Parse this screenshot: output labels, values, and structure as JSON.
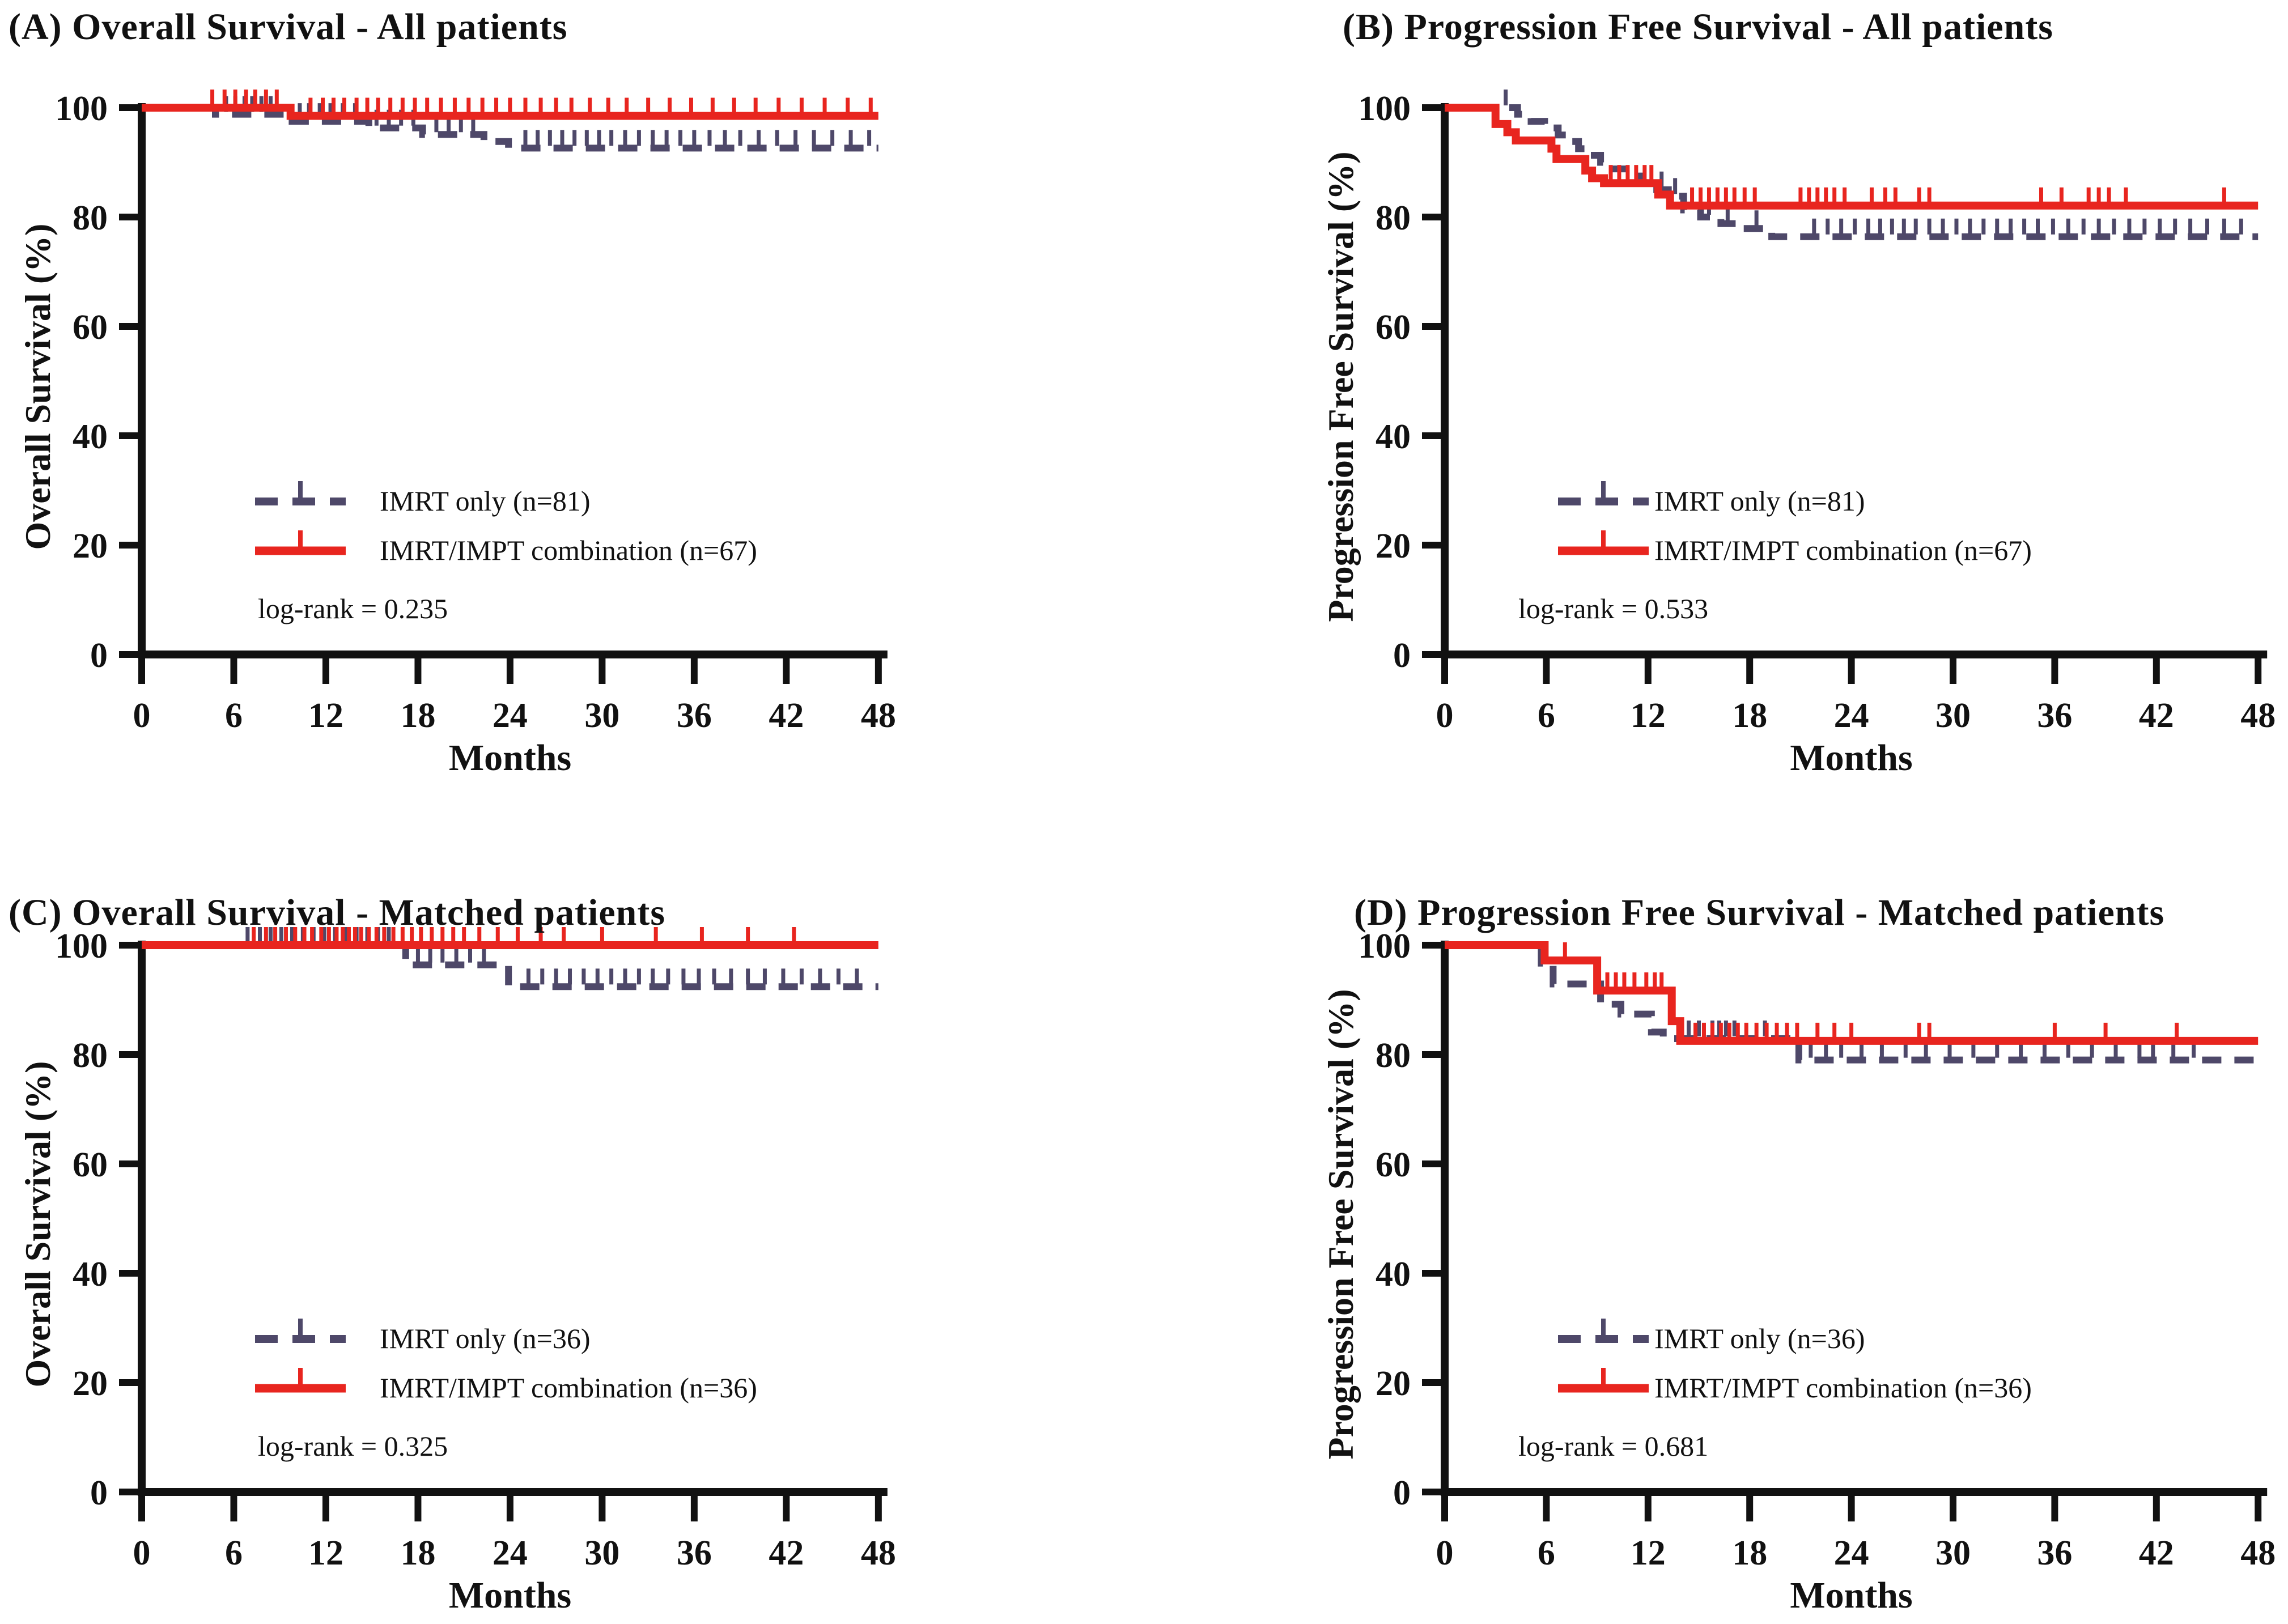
{
  "colors": {
    "imrt_only": "#4e4869",
    "imrt_impt": "#e8251f",
    "axis": "#111111"
  },
  "chart_data": [
    {
      "id": "A",
      "title": "(A) Overall Survival - All patients",
      "ylabel": "Overall Survival (%)",
      "xlabel": "Months",
      "type": "line",
      "step": true,
      "xlim": [
        0,
        48
      ],
      "ylim": [
        0,
        100
      ],
      "xticks": [
        0,
        6,
        12,
        18,
        24,
        30,
        36,
        42,
        48
      ],
      "yticks": [
        0,
        20,
        40,
        60,
        80,
        100
      ],
      "legend_position": "lower-left",
      "log_rank": "log-rank = 0.235",
      "series": [
        {
          "name": "IMRT only (n=81)",
          "color_key": "imrt_only",
          "dash": true,
          "points": [
            [
              0,
              100
            ],
            [
              4.8,
              100
            ],
            [
              4.8,
              98.8
            ],
            [
              9.8,
              98.8
            ],
            [
              9.8,
              97.5
            ],
            [
              14.8,
              97.5
            ],
            [
              14.8,
              96.3
            ],
            [
              18.3,
              96.3
            ],
            [
              18.3,
              95.1
            ],
            [
              22.3,
              95.1
            ],
            [
              22.3,
              93.8
            ],
            [
              23.9,
              93.8
            ],
            [
              23.9,
              92.6
            ],
            [
              48,
              92.6
            ]
          ],
          "censors": [
            5.5,
            6.1,
            6.7,
            7.2,
            7.8,
            8.4,
            10.3,
            10.9,
            11.6,
            12.3,
            13.1,
            13.9,
            15.3,
            16.1,
            16.9,
            17.7,
            19.2,
            20.0,
            20.8,
            21.6,
            25.0,
            25.8,
            26.6,
            27.4,
            28.2,
            29.0,
            29.8,
            30.6,
            31.5,
            32.4,
            33.3,
            34.2,
            35.1,
            36.0,
            37.0,
            38.0,
            39.0,
            40.2,
            41.4,
            42.6,
            43.8,
            45.0,
            46.2,
            47.4
          ]
        },
        {
          "name": "IMRT/IMPT combination (n=67)",
          "color_key": "imrt_impt",
          "dash": false,
          "points": [
            [
              0,
              100
            ],
            [
              9.7,
              100
            ],
            [
              9.7,
              98.5
            ],
            [
              48,
              98.5
            ]
          ],
          "censors": [
            4.6,
            5.4,
            6.1,
            6.8,
            7.4,
            8.1,
            8.8,
            11.0,
            11.8,
            12.5,
            13.2,
            14.0,
            14.7,
            15.4,
            16.2,
            17.0,
            17.8,
            18.6,
            19.5,
            20.4,
            21.3,
            22.2,
            23.1,
            24.0,
            25.0,
            26.0,
            27.0,
            28.0,
            29.2,
            30.4,
            31.6,
            33.0,
            34.4,
            35.8,
            37.2,
            38.6,
            40.0,
            41.5,
            43.0,
            44.5,
            46.0,
            47.5
          ]
        }
      ]
    },
    {
      "id": "B",
      "title": "(B) Progression Free Survival - All patients",
      "ylabel": "Progression Free Survival (%)",
      "xlabel": "Months",
      "type": "line",
      "step": true,
      "xlim": [
        0,
        48
      ],
      "ylim": [
        0,
        100
      ],
      "xticks": [
        0,
        6,
        12,
        18,
        24,
        30,
        36,
        42,
        48
      ],
      "yticks": [
        0,
        20,
        40,
        60,
        80,
        100
      ],
      "legend_position": "lower-left",
      "log_rank": "log-rank = 0.533",
      "series": [
        {
          "name": "IMRT only (n=81)",
          "color_key": "imrt_only",
          "dash": true,
          "points": [
            [
              0,
              100
            ],
            [
              4.3,
              100
            ],
            [
              4.3,
              98.8
            ],
            [
              5.1,
              98.8
            ],
            [
              5.1,
              97.5
            ],
            [
              5.9,
              97.5
            ],
            [
              5.9,
              96.3
            ],
            [
              6.7,
              96.3
            ],
            [
              6.7,
              95.0
            ],
            [
              7.2,
              95.0
            ],
            [
              7.2,
              93.8
            ],
            [
              7.9,
              93.8
            ],
            [
              7.9,
              92.5
            ],
            [
              8.5,
              92.5
            ],
            [
              8.5,
              91.3
            ],
            [
              9.2,
              91.3
            ],
            [
              9.2,
              90.0
            ],
            [
              9.9,
              90.0
            ],
            [
              9.9,
              88.8
            ],
            [
              10.7,
              88.8
            ],
            [
              10.7,
              87.5
            ],
            [
              11.5,
              87.5
            ],
            [
              11.5,
              86.3
            ],
            [
              12.3,
              86.3
            ],
            [
              12.3,
              85.0
            ],
            [
              13.2,
              85.0
            ],
            [
              13.2,
              83.8
            ],
            [
              14.1,
              83.8
            ],
            [
              14.1,
              81.3
            ],
            [
              15.1,
              81.3
            ],
            [
              15.1,
              80.0
            ],
            [
              16.3,
              80.0
            ],
            [
              16.3,
              78.8
            ],
            [
              17.6,
              78.8
            ],
            [
              17.6,
              77.9
            ],
            [
              19.3,
              77.9
            ],
            [
              19.3,
              76.4
            ],
            [
              48,
              76.4
            ]
          ],
          "censors": [
            3.6,
            12.8,
            13.6,
            15.6,
            16.7,
            18.4,
            21.8,
            22.6,
            23.4,
            24.2,
            25.0,
            25.7,
            26.4,
            27.1,
            27.8,
            28.6,
            29.4,
            30.2,
            31.0,
            31.8,
            32.6,
            33.4,
            34.2,
            35.0,
            35.9,
            36.8,
            37.7,
            38.6,
            39.5,
            40.4,
            41.3,
            42.2,
            43.1,
            44.0,
            45.0,
            46.0,
            47.0
          ]
        },
        {
          "name": "IMRT/IMPT combination (n=67)",
          "color_key": "imrt_impt",
          "dash": false,
          "points": [
            [
              0,
              100
            ],
            [
              3.0,
              100
            ],
            [
              3.0,
              97.0
            ],
            [
              3.7,
              97.0
            ],
            [
              3.7,
              95.5
            ],
            [
              4.2,
              95.5
            ],
            [
              4.2,
              94.0
            ],
            [
              6.3,
              94.0
            ],
            [
              6.3,
              92.5
            ],
            [
              6.6,
              92.5
            ],
            [
              6.6,
              90.6
            ],
            [
              8.3,
              90.6
            ],
            [
              8.3,
              88.5
            ],
            [
              8.7,
              88.5
            ],
            [
              8.7,
              87.1
            ],
            [
              9.4,
              87.1
            ],
            [
              9.4,
              86.2
            ],
            [
              12.6,
              86.2
            ],
            [
              12.6,
              84.1
            ],
            [
              13.3,
              84.1
            ],
            [
              13.3,
              82.1
            ],
            [
              48,
              82.1
            ]
          ],
          "censors": [
            9.8,
            10.3,
            10.8,
            11.3,
            11.8,
            12.2,
            14.6,
            15.1,
            15.6,
            16.1,
            16.6,
            17.1,
            17.7,
            18.3,
            21.0,
            21.5,
            22.0,
            22.5,
            23.0,
            23.6,
            25.2,
            26.0,
            26.6,
            28.0,
            28.6,
            35.2,
            36.4,
            38.0,
            38.6,
            39.2,
            40.2,
            46.0
          ]
        }
      ]
    },
    {
      "id": "C",
      "title": "(C) Overall Survival - Matched patients",
      "ylabel": "Overall Survival (%)",
      "xlabel": "Months",
      "type": "line",
      "step": true,
      "xlim": [
        0,
        48
      ],
      "ylim": [
        0,
        100
      ],
      "xticks": [
        0,
        6,
        12,
        18,
        24,
        30,
        36,
        42,
        48
      ],
      "yticks": [
        0,
        20,
        40,
        60,
        80,
        100
      ],
      "legend_position": "lower-left",
      "log_rank": "log-rank = 0.325",
      "series": [
        {
          "name": "IMRT only (n=36)",
          "color_key": "imrt_only",
          "dash": true,
          "points": [
            [
              0,
              100
            ],
            [
              17.2,
              100
            ],
            [
              17.2,
              96.4
            ],
            [
              23.9,
              96.4
            ],
            [
              23.9,
              92.4
            ],
            [
              48,
              92.4
            ]
          ],
          "censors": [
            6.9,
            7.7,
            8.4,
            9.1,
            9.8,
            10.5,
            11.2,
            11.9,
            12.6,
            13.3,
            14.0,
            14.7,
            15.4,
            16.1,
            18.0,
            18.8,
            19.6,
            20.5,
            21.4,
            22.3,
            25.2,
            26.1,
            27.0,
            27.9,
            28.8,
            29.7,
            30.6,
            31.5,
            32.4,
            33.3,
            34.3,
            35.3,
            36.3,
            37.3,
            38.4,
            39.5,
            40.6,
            41.8,
            43.0,
            44.2,
            45.4,
            46.6
          ]
        },
        {
          "name": "IMRT/IMPT combination (n=36)",
          "color_key": "imrt_impt",
          "dash": false,
          "points": [
            [
              0,
              100
            ],
            [
              48,
              100
            ]
          ],
          "censors": [
            7.3,
            8.1,
            8.7,
            9.4,
            10.0,
            10.6,
            11.1,
            11.7,
            12.2,
            12.7,
            13.1,
            13.5,
            13.9,
            14.3,
            14.8,
            15.3,
            15.8,
            16.4,
            17.0,
            17.6,
            18.2,
            18.9,
            19.6,
            20.3,
            21.0,
            22.0,
            23.2,
            24.5,
            26.0,
            27.5,
            30.0,
            33.5,
            36.5,
            39.5,
            42.5
          ]
        }
      ]
    },
    {
      "id": "D",
      "title": "(D) Progression Free Survival - Matched patients",
      "ylabel": "Progression Free Survival (%)",
      "xlabel": "Months",
      "type": "line",
      "step": true,
      "xlim": [
        0,
        48
      ],
      "ylim": [
        0,
        100
      ],
      "xticks": [
        0,
        6,
        12,
        18,
        24,
        30,
        36,
        42,
        48
      ],
      "yticks": [
        0,
        20,
        40,
        60,
        80,
        100
      ],
      "legend_position": "lower-left",
      "log_rank": "log-rank = 0.681",
      "series": [
        {
          "name": "IMRT only (n=36)",
          "color_key": "imrt_only",
          "dash": true,
          "points": [
            [
              0,
              100
            ],
            [
              5.7,
              100
            ],
            [
              5.7,
              96.7
            ],
            [
              6.4,
              96.7
            ],
            [
              6.4,
              92.9
            ],
            [
              9.2,
              92.9
            ],
            [
              9.2,
              89.2
            ],
            [
              10.4,
              89.2
            ],
            [
              10.4,
              87.4
            ],
            [
              12.2,
              87.4
            ],
            [
              12.2,
              84.1
            ],
            [
              12.9,
              84.1
            ],
            [
              12.9,
              82.9
            ],
            [
              20.9,
              82.9
            ],
            [
              20.9,
              79.0
            ],
            [
              48,
              79.0
            ]
          ],
          "censors": [
            13.8,
            14.4,
            15.0,
            15.8,
            16.2,
            16.6,
            17.1,
            18.9,
            21.6,
            22.5,
            23.4,
            24.6,
            25.8,
            27.2,
            28.4,
            29.8,
            31.2,
            32.6,
            34.0,
            35.4,
            36.8,
            38.2,
            39.6,
            41.0,
            41.8,
            43.0,
            44.2
          ]
        },
        {
          "name": "IMRT/IMPT combination (n=36)",
          "color_key": "imrt_impt",
          "dash": false,
          "points": [
            [
              0,
              100
            ],
            [
              5.9,
              100
            ],
            [
              5.9,
              97.2
            ],
            [
              9.0,
              97.2
            ],
            [
              9.0,
              91.7
            ],
            [
              13.4,
              91.7
            ],
            [
              13.4,
              86.1
            ],
            [
              13.9,
              86.1
            ],
            [
              13.9,
              82.5
            ],
            [
              48,
              82.5
            ]
          ],
          "censors": [
            7.1,
            9.6,
            10.1,
            10.6,
            11.2,
            11.9,
            12.4,
            12.8,
            14.8,
            15.3,
            15.8,
            16.3,
            16.8,
            17.3,
            17.8,
            18.4,
            19.0,
            19.6,
            20.2,
            20.8,
            22.0,
            23.0,
            24.0,
            28.0,
            28.6,
            36.0,
            39.0,
            43.2
          ]
        }
      ]
    }
  ]
}
